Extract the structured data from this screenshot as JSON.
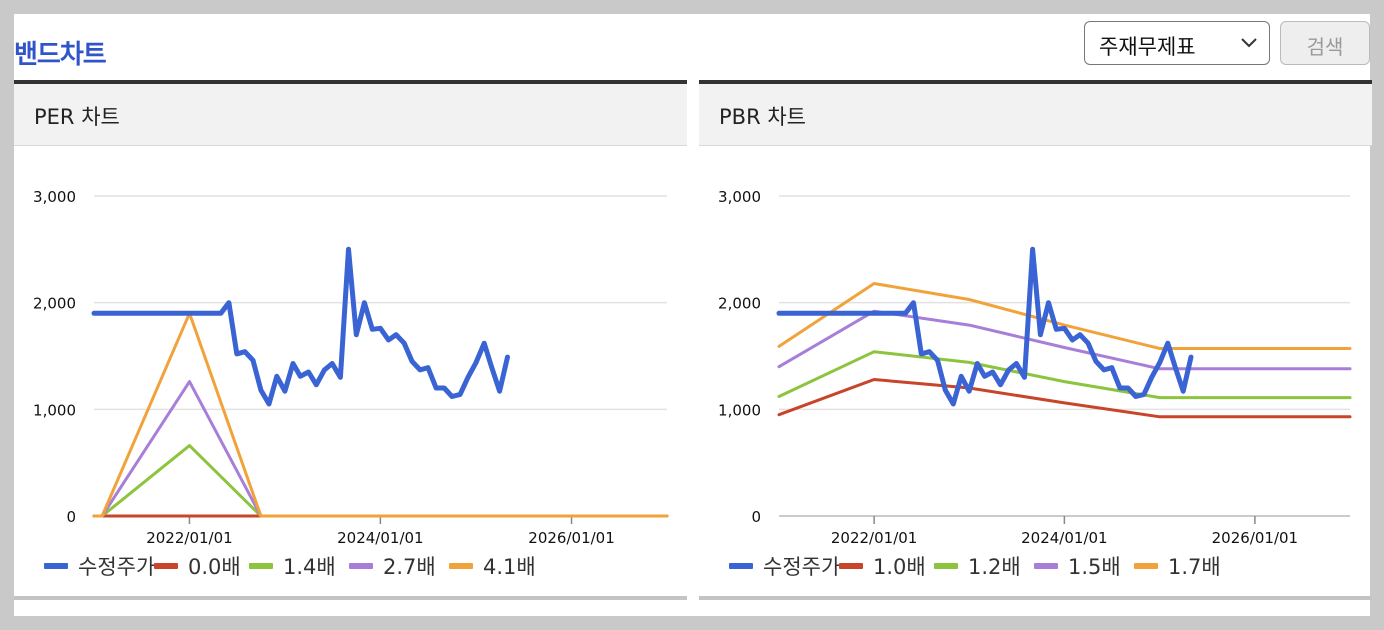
{
  "title": "밴드차트",
  "controls": {
    "select_value": "주재무제표",
    "search_label": "검색"
  },
  "panels": [
    {
      "title": "PER 차트"
    },
    {
      "title": "PBR 차트"
    }
  ],
  "colors": {
    "title": "#2f55c8",
    "price": "#3a63d4",
    "band1": "#c8442a",
    "band2": "#8cc43e",
    "band3": "#a77ed8",
    "band4": "#f2a23a"
  },
  "chart_data": [
    {
      "type": "line",
      "title": "PER 차트",
      "ylim": [
        0,
        3000
      ],
      "yticks": [
        "0",
        "1,000",
        "2,000",
        "3,000"
      ],
      "xlim": [
        "2021/01/01",
        "2027/01/01"
      ],
      "xticks": [
        "2022/01/01",
        "2024/01/01",
        "2026/01/01"
      ],
      "grid": true,
      "legend": "bottom",
      "series": [
        {
          "name": "수정주가",
          "points": [
            [
              "2021/01/01",
              1900
            ],
            [
              "2021/04/01",
              1900
            ],
            [
              "2021/08/01",
              1900
            ],
            [
              "2022/01/01",
              1900
            ],
            [
              "2022/05/01",
              1900
            ],
            [
              "2022/06/01",
              2000
            ],
            [
              "2022/07/01",
              1520
            ],
            [
              "2022/08/01",
              1540
            ],
            [
              "2022/09/01",
              1460
            ],
            [
              "2022/10/01",
              1180
            ],
            [
              "2022/11/01",
              1050
            ],
            [
              "2022/12/01",
              1310
            ],
            [
              "2023/01/01",
              1170
            ],
            [
              "2023/02/01",
              1430
            ],
            [
              "2023/03/01",
              1310
            ],
            [
              "2023/04/01",
              1350
            ],
            [
              "2023/05/01",
              1230
            ],
            [
              "2023/06/01",
              1370
            ],
            [
              "2023/07/01",
              1430
            ],
            [
              "2023/08/01",
              1300
            ],
            [
              "2023/09/01",
              2500
            ],
            [
              "2023/10/01",
              1700
            ],
            [
              "2023/11/01",
              2000
            ],
            [
              "2023/12/01",
              1750
            ],
            [
              "2024/01/01",
              1760
            ],
            [
              "2024/02/01",
              1650
            ],
            [
              "2024/03/01",
              1700
            ],
            [
              "2024/04/01",
              1620
            ],
            [
              "2024/05/01",
              1450
            ],
            [
              "2024/06/01",
              1370
            ],
            [
              "2024/07/01",
              1390
            ],
            [
              "2024/08/01",
              1200
            ],
            [
              "2024/09/01",
              1200
            ],
            [
              "2024/10/01",
              1120
            ],
            [
              "2024/11/01",
              1140
            ],
            [
              "2024/12/01",
              1300
            ],
            [
              "2025/01/01",
              1440
            ],
            [
              "2025/02/01",
              1620
            ],
            [
              "2025/03/01",
              1400
            ],
            [
              "2025/04/01",
              1170
            ],
            [
              "2025/05/01",
              1490
            ]
          ]
        },
        {
          "name": "0.0배",
          "points": [
            [
              "2021/01/01",
              0
            ],
            [
              "2022/01/01",
              0
            ],
            [
              "2027/01/01",
              0
            ]
          ]
        },
        {
          "name": "1.4배",
          "points": [
            [
              "2021/01/01",
              0
            ],
            [
              "2021/02/01",
              0
            ],
            [
              "2022/01/01",
              660
            ],
            [
              "2022/10/01",
              0
            ],
            [
              "2027/01/01",
              0
            ]
          ]
        },
        {
          "name": "2.7배",
          "points": [
            [
              "2021/01/01",
              0
            ],
            [
              "2021/02/01",
              0
            ],
            [
              "2022/01/01",
              1260
            ],
            [
              "2022/10/01",
              0
            ],
            [
              "2027/01/01",
              0
            ]
          ]
        },
        {
          "name": "4.1배",
          "points": [
            [
              "2021/01/01",
              0
            ],
            [
              "2021/02/01",
              0
            ],
            [
              "2022/01/01",
              1900
            ],
            [
              "2022/10/01",
              0
            ],
            [
              "2027/01/01",
              0
            ]
          ]
        }
      ]
    },
    {
      "type": "line",
      "title": "PBR 차트",
      "ylim": [
        0,
        3000
      ],
      "yticks": [
        "0",
        "1,000",
        "2,000",
        "3,000"
      ],
      "xlim": [
        "2021/01/01",
        "2027/01/01"
      ],
      "xticks": [
        "2022/01/01",
        "2024/01/01",
        "2026/01/01"
      ],
      "grid": true,
      "legend": "bottom",
      "series": [
        {
          "name": "수정주가",
          "points": [
            [
              "2021/01/01",
              1900
            ],
            [
              "2021/04/01",
              1900
            ],
            [
              "2021/08/01",
              1900
            ],
            [
              "2022/01/01",
              1900
            ],
            [
              "2022/05/01",
              1900
            ],
            [
              "2022/06/01",
              2000
            ],
            [
              "2022/07/01",
              1520
            ],
            [
              "2022/08/01",
              1540
            ],
            [
              "2022/09/01",
              1460
            ],
            [
              "2022/10/01",
              1180
            ],
            [
              "2022/11/01",
              1050
            ],
            [
              "2022/12/01",
              1310
            ],
            [
              "2023/01/01",
              1170
            ],
            [
              "2023/02/01",
              1430
            ],
            [
              "2023/03/01",
              1310
            ],
            [
              "2023/04/01",
              1350
            ],
            [
              "2023/05/01",
              1230
            ],
            [
              "2023/06/01",
              1370
            ],
            [
              "2023/07/01",
              1430
            ],
            [
              "2023/08/01",
              1300
            ],
            [
              "2023/09/01",
              2500
            ],
            [
              "2023/10/01",
              1700
            ],
            [
              "2023/11/01",
              2000
            ],
            [
              "2023/12/01",
              1750
            ],
            [
              "2024/01/01",
              1760
            ],
            [
              "2024/02/01",
              1650
            ],
            [
              "2024/03/01",
              1700
            ],
            [
              "2024/04/01",
              1620
            ],
            [
              "2024/05/01",
              1450
            ],
            [
              "2024/06/01",
              1370
            ],
            [
              "2024/07/01",
              1390
            ],
            [
              "2024/08/01",
              1200
            ],
            [
              "2024/09/01",
              1200
            ],
            [
              "2024/10/01",
              1120
            ],
            [
              "2024/11/01",
              1140
            ],
            [
              "2024/12/01",
              1300
            ],
            [
              "2025/01/01",
              1440
            ],
            [
              "2025/02/01",
              1620
            ],
            [
              "2025/03/01",
              1400
            ],
            [
              "2025/04/01",
              1170
            ],
            [
              "2025/05/01",
              1490
            ]
          ]
        },
        {
          "name": "1.0배",
          "points": [
            [
              "2021/01/01",
              950
            ],
            [
              "2022/01/01",
              1280
            ],
            [
              "2023/01/01",
              1200
            ],
            [
              "2024/01/01",
              1060
            ],
            [
              "2025/01/01",
              930
            ],
            [
              "2027/01/01",
              930
            ]
          ]
        },
        {
          "name": "1.2배",
          "points": [
            [
              "2021/01/01",
              1120
            ],
            [
              "2022/01/01",
              1540
            ],
            [
              "2023/01/01",
              1440
            ],
            [
              "2024/01/01",
              1260
            ],
            [
              "2025/01/01",
              1110
            ],
            [
              "2027/01/01",
              1110
            ]
          ]
        },
        {
          "name": "1.5배",
          "points": [
            [
              "2021/01/01",
              1400
            ],
            [
              "2022/01/01",
              1920
            ],
            [
              "2023/01/01",
              1790
            ],
            [
              "2024/01/01",
              1580
            ],
            [
              "2025/01/01",
              1380
            ],
            [
              "2027/01/01",
              1380
            ]
          ]
        },
        {
          "name": "1.7배",
          "points": [
            [
              "2021/01/01",
              1590
            ],
            [
              "2022/01/01",
              2180
            ],
            [
              "2023/01/01",
              2030
            ],
            [
              "2024/01/01",
              1790
            ],
            [
              "2025/01/01",
              1570
            ],
            [
              "2027/01/01",
              1570
            ]
          ]
        }
      ]
    }
  ]
}
